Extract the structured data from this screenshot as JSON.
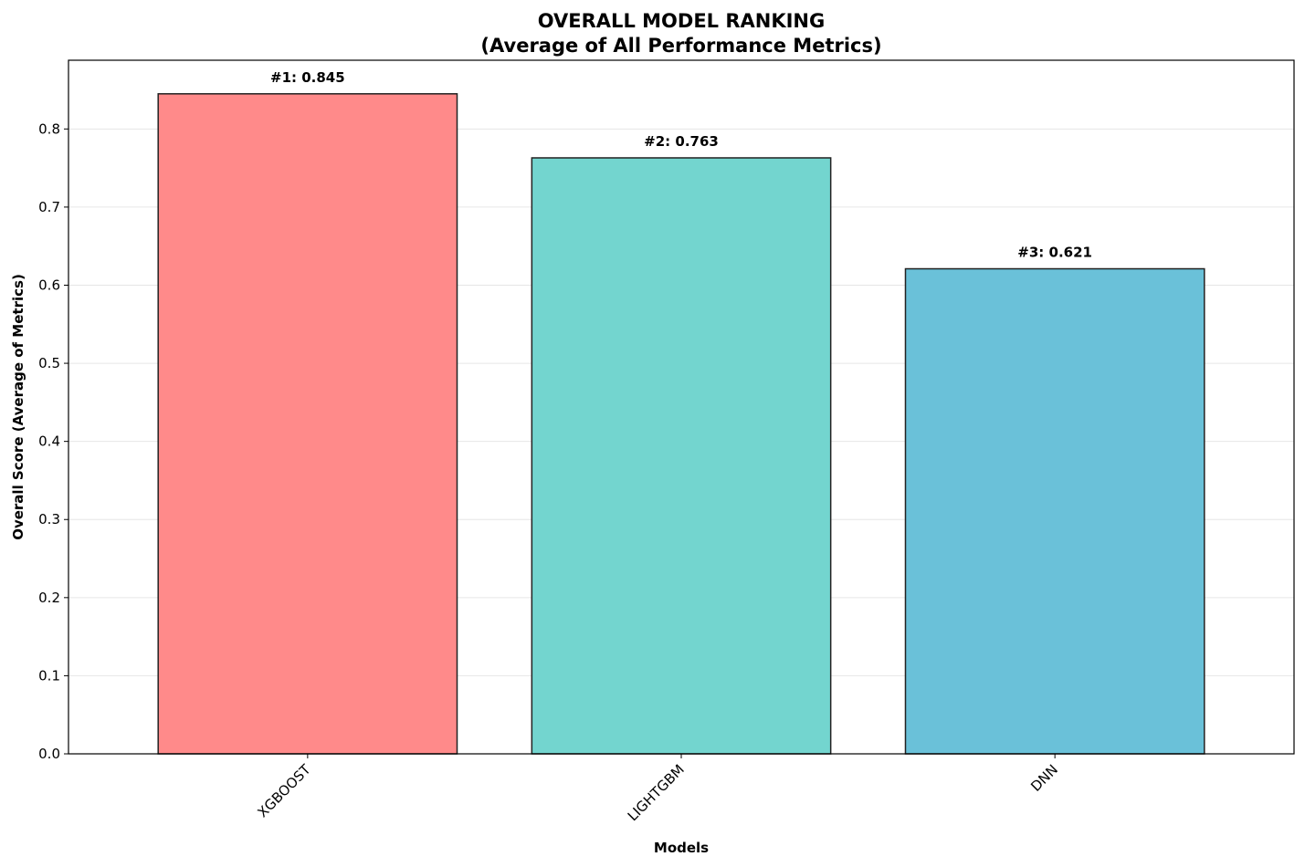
{
  "chart_data": {
    "type": "bar",
    "title": "OVERALL MODEL RANKING",
    "subtitle": "(Average of All Performance Metrics)",
    "xlabel": "Models",
    "ylabel": "Overall Score (Average of Metrics)",
    "categories": [
      "XGBOOST",
      "LIGHTGBM",
      "DNN"
    ],
    "values": [
      0.845,
      0.763,
      0.621
    ],
    "data_labels": [
      "#1: 0.845",
      "#2: 0.763",
      "#3: 0.621"
    ],
    "colors": [
      "#ff8a8a",
      "#73d5cf",
      "#6ac1d9"
    ],
    "ylim": [
      0,
      0.888
    ],
    "yticks": [
      0.0,
      0.1,
      0.2,
      0.3,
      0.4,
      0.5,
      0.6,
      0.7,
      0.8
    ],
    "ytick_labels": [
      "0.0",
      "0.1",
      "0.2",
      "0.3",
      "0.4",
      "0.5",
      "0.6",
      "0.7",
      "0.8"
    ],
    "grid": "y",
    "legend": "none",
    "xtick_rotation": 45
  }
}
